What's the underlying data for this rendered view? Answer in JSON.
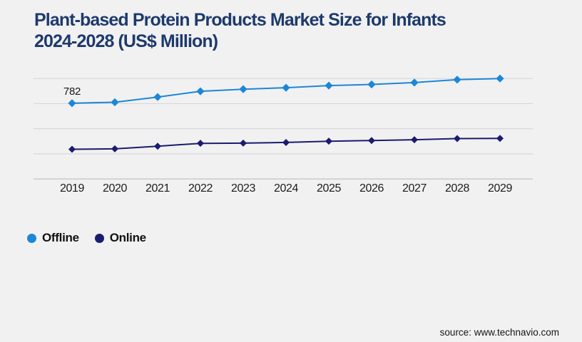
{
  "title": {
    "line1": "Plant-based Protein Products Market Size for Infants",
    "line2": "2024-2028 (US$ Million)"
  },
  "source": "source: www.technavio.com",
  "colors": {
    "background": "#f1f1f2",
    "grid": "#d8d8db",
    "axis": "#c6c6ca",
    "title": "#1e3a6c",
    "offline": "#1b87d6",
    "online": "#1b1b6f"
  },
  "legend": [
    {
      "label": "Offline",
      "color": "#1b87d6"
    },
    {
      "label": "Online",
      "color": "#1b1b6f"
    }
  ],
  "chart_data": {
    "type": "line",
    "title": "Plant-based Protein Products Market Size for Infants 2024-2028 (US$ Million)",
    "categories": [
      "2019",
      "2020",
      "2021",
      "2022",
      "2023",
      "2024",
      "2025",
      "2026",
      "2027",
      "2028",
      "2029"
    ],
    "series": [
      {
        "name": "Offline",
        "color": "#1b87d6",
        "marker": "diamond",
        "values": [
          782,
          792,
          846,
          905,
          927,
          942,
          964,
          976,
          995,
          1025,
          1037
        ]
      },
      {
        "name": "Online",
        "color": "#1b1b6f",
        "marker": "diamond",
        "values": [
          307,
          311,
          338,
          368,
          370,
          377,
          390,
          397,
          405,
          417,
          419
        ]
      }
    ],
    "data_labels": [
      {
        "series": "Offline",
        "category": "2019",
        "text": "782"
      }
    ],
    "ylim": [
      0,
      1112
    ],
    "grid": "horizontal",
    "gridline_values": [
      0,
      259,
      519,
      778,
      1037
    ],
    "legend_position": "bottom-left",
    "note": "Only the 2019 Offline point is labeled (782); other values estimated from pixel positions."
  }
}
